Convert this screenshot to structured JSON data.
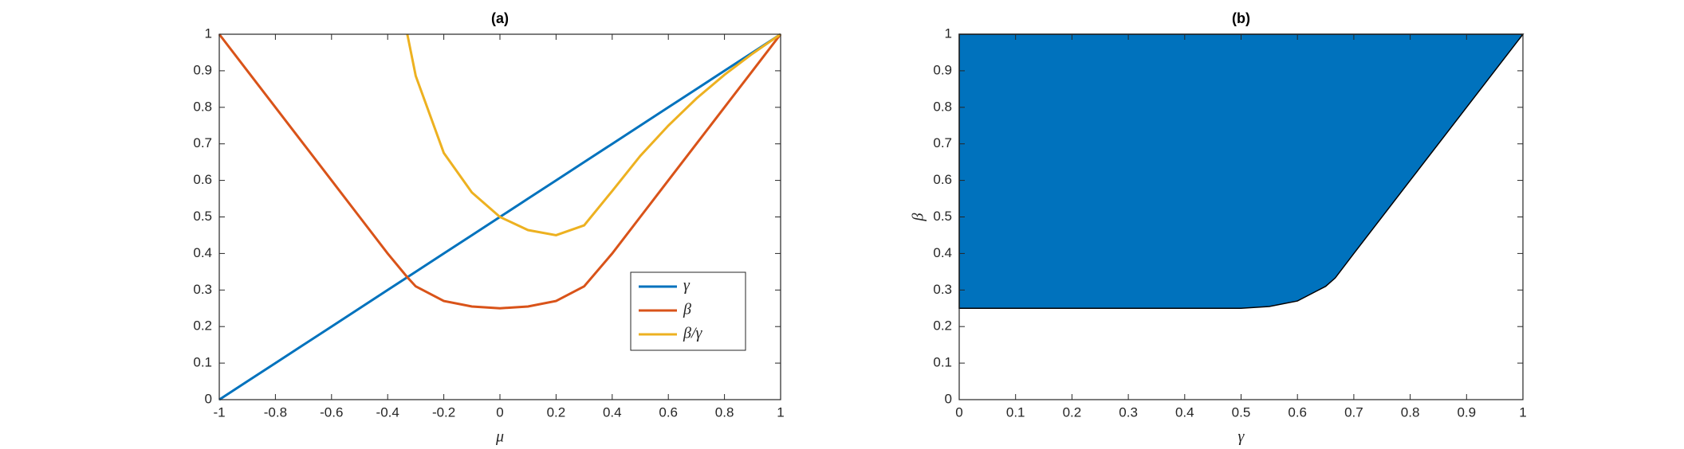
{
  "chart_data": [
    {
      "type": "line",
      "title": "(a)",
      "x_label": "μ",
      "x": [
        -1,
        -0.9,
        -0.8,
        -0.7,
        -0.6,
        -0.5,
        -0.4,
        -0.33,
        -0.3,
        -0.2,
        -0.1,
        0,
        0.1,
        0.2,
        0.3,
        0.4,
        0.5,
        0.6,
        0.7,
        0.8,
        0.9,
        1
      ],
      "series": [
        {
          "name": "γ",
          "color": "#0072BD",
          "values": [
            0,
            0.05,
            0.1,
            0.15,
            0.2,
            0.25,
            0.3,
            0.335,
            0.35,
            0.4,
            0.45,
            0.5,
            0.55,
            0.6,
            0.65,
            0.7,
            0.75,
            0.8,
            0.85,
            0.9,
            0.95,
            1
          ]
        },
        {
          "name": "β",
          "color": "#D95319",
          "values": [
            1,
            0.9,
            0.8,
            0.7,
            0.6,
            0.5,
            0.4,
            0.335,
            0.31,
            0.27,
            0.255,
            0.25,
            0.255,
            0.27,
            0.31,
            0.4,
            0.5,
            0.6,
            0.7,
            0.8,
            0.9,
            1
          ]
        },
        {
          "name": "β/γ",
          "color": "#EDB120",
          "values": [
            null,
            null,
            null,
            null,
            null,
            null,
            null,
            1,
            0.886,
            0.675,
            0.567,
            0.5,
            0.464,
            0.45,
            0.477,
            0.571,
            0.667,
            0.75,
            0.824,
            0.889,
            0.947,
            1
          ]
        }
      ],
      "xlim": [
        -1,
        1
      ],
      "xticks": [
        -1,
        -0.8,
        -0.6,
        -0.4,
        -0.2,
        0,
        0.2,
        0.4,
        0.6,
        0.8,
        1
      ],
      "ylim": [
        0,
        1
      ],
      "yticks": [
        0,
        0.1,
        0.2,
        0.3,
        0.4,
        0.5,
        0.6,
        0.7,
        0.8,
        0.9,
        1
      ],
      "legend": "southeast"
    },
    {
      "type": "area",
      "title": "(b)",
      "x_label": "γ",
      "y_label": "β",
      "x": [
        0,
        0.1,
        0.2,
        0.3,
        0.4,
        0.5,
        0.55,
        0.6,
        0.65,
        0.667,
        0.7,
        0.8,
        0.9,
        1
      ],
      "series": [
        {
          "color": "#0072BD",
          "values": [
            0.25,
            0.25,
            0.25,
            0.25,
            0.25,
            0.25,
            0.255,
            0.27,
            0.31,
            0.333,
            0.4,
            0.6,
            0.8,
            1
          ]
        }
      ],
      "fill_to": "top",
      "xlim": [
        0,
        1
      ],
      "xticks": [
        0,
        0.1,
        0.2,
        0.3,
        0.4,
        0.5,
        0.6,
        0.7,
        0.8,
        0.9,
        1
      ],
      "ylim": [
        0,
        1
      ],
      "yticks": [
        0,
        0.1,
        0.2,
        0.3,
        0.4,
        0.5,
        0.6,
        0.7,
        0.8,
        0.9,
        1
      ]
    }
  ]
}
